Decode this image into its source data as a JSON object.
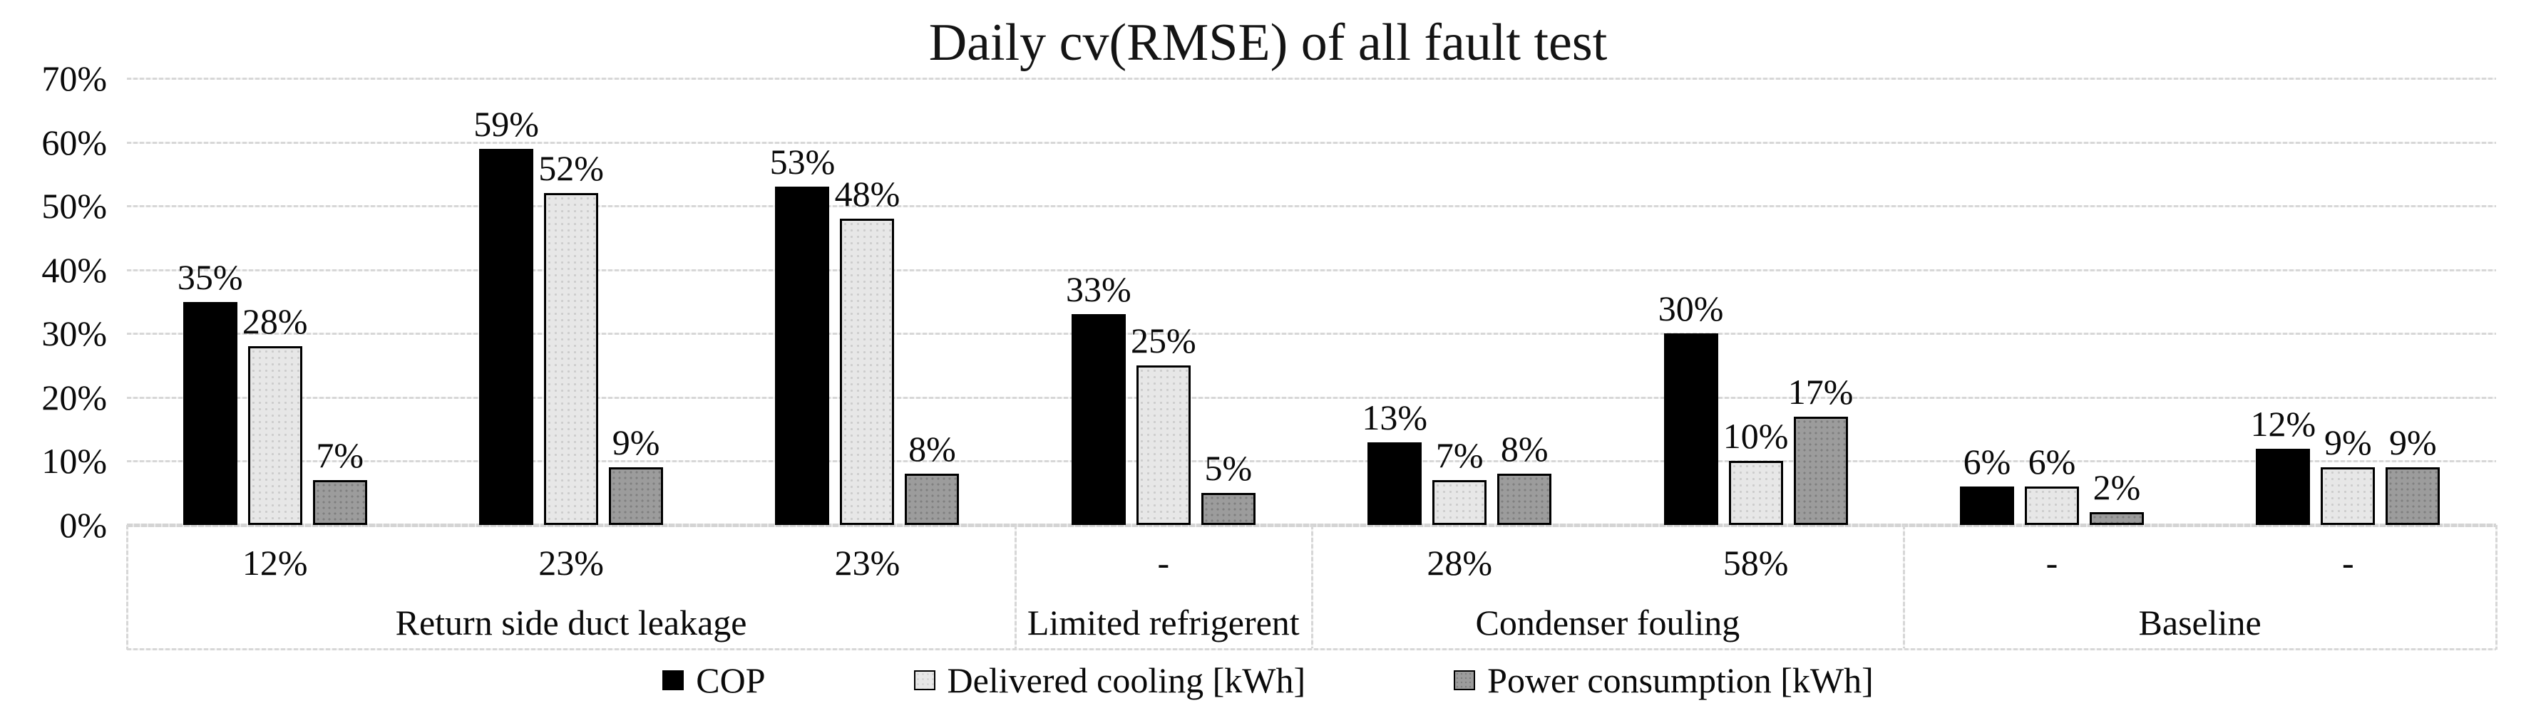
{
  "chart_data": {
    "type": "bar",
    "title": "Daily cv(RMSE) of all fault test",
    "xlabel": "",
    "ylabel": "",
    "ylim": [
      0,
      70
    ],
    "y_unit": "%",
    "grid": true,
    "legend_position": "bottom",
    "y_tick_labels": [
      "0%",
      "10%",
      "20%",
      "30%",
      "40%",
      "50%",
      "60%",
      "70%"
    ],
    "group_labels": [
      "12%",
      "23%",
      "23%",
      "-",
      "28%",
      "58%",
      "-",
      "-"
    ],
    "categories": [
      {
        "label": "Return side duct leakage",
        "group_span": 3
      },
      {
        "label": "Limited refrigerent",
        "group_span": 1
      },
      {
        "label": "Condenser fouling",
        "group_span": 2
      },
      {
        "label": "Baseline",
        "group_span": 2
      }
    ],
    "series": [
      {
        "name": "COP",
        "color": "#000000",
        "values_pct": [
          35,
          59,
          53,
          33,
          13,
          30,
          6,
          12
        ]
      },
      {
        "name": "Delivered cooling [kWh]",
        "color": "#e7e7e7",
        "values_pct": [
          28,
          52,
          48,
          25,
          7,
          10,
          6,
          9
        ]
      },
      {
        "name": "Power consumption [kWh]",
        "color": "#9c9c9c",
        "values_pct": [
          7,
          9,
          8,
          5,
          8,
          17,
          2,
          9
        ]
      }
    ],
    "data_label_suffix": "%"
  },
  "colors": {
    "gridline": "#d9d9d9",
    "bar_border": "#000000",
    "text": "#000000",
    "background": "#ffffff"
  }
}
